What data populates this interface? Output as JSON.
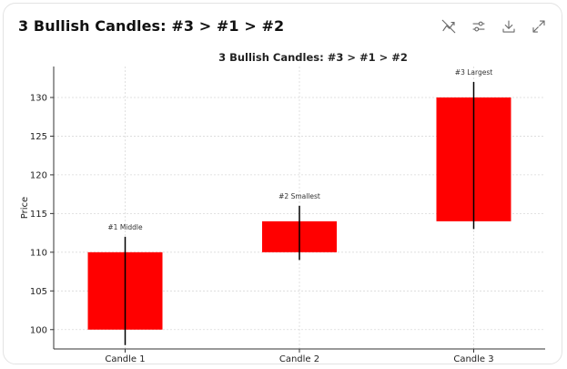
{
  "card": {
    "title": "3 Bullish Candles: #3 > #1 > #2"
  },
  "toolbar": {
    "icons": [
      "chart-type-off-icon",
      "sliders-icon",
      "download-icon",
      "expand-icon"
    ]
  },
  "chart_data": {
    "type": "candlestick",
    "title": "3 Bullish Candles: #3 > #1 > #2",
    "xlabel": "",
    "ylabel": "Price",
    "ylim": [
      97.5,
      134
    ],
    "yticks": [
      100,
      105,
      110,
      115,
      120,
      125,
      130
    ],
    "grid": true,
    "candle_color": "#ff0000",
    "wick_color": "#000000",
    "categories": [
      "Candle 1",
      "Candle 2",
      "Candle 3"
    ],
    "candles": [
      {
        "x": "Candle 1",
        "open": 100,
        "close": 110,
        "low": 98,
        "high": 112,
        "annotation": "#1 Middle"
      },
      {
        "x": "Candle 2",
        "open": 110,
        "close": 114,
        "low": 109,
        "high": 116,
        "annotation": "#2 Smallest"
      },
      {
        "x": "Candle 3",
        "open": 114,
        "close": 130,
        "low": 113,
        "high": 132,
        "annotation": "#3 Largest"
      }
    ]
  }
}
